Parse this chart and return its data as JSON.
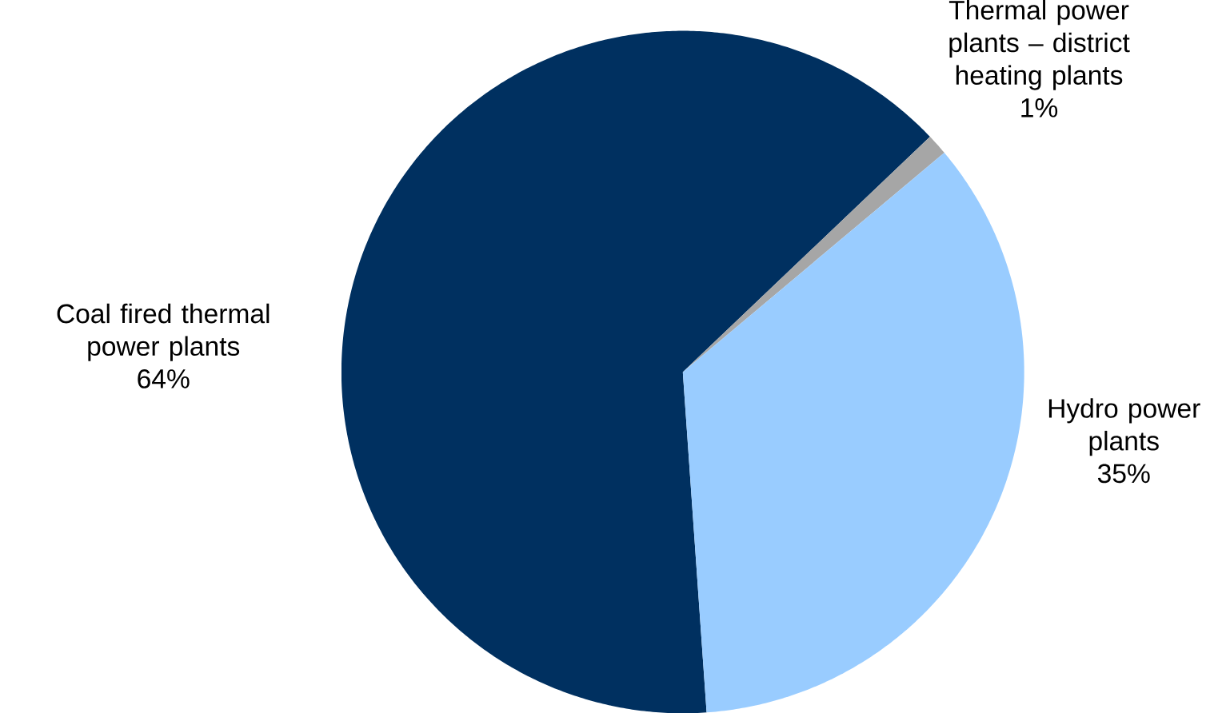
{
  "chart_data": {
    "type": "pie",
    "categories": [
      "Coal fired thermal power plants",
      "Thermal power plants – district heating plants",
      "Hydro power plants"
    ],
    "values": [
      64,
      1,
      35
    ],
    "value_labels": [
      "64%",
      "1%",
      "35%"
    ],
    "colors": [
      "#003060",
      "#a6a6a6",
      "#99ccff"
    ]
  }
}
